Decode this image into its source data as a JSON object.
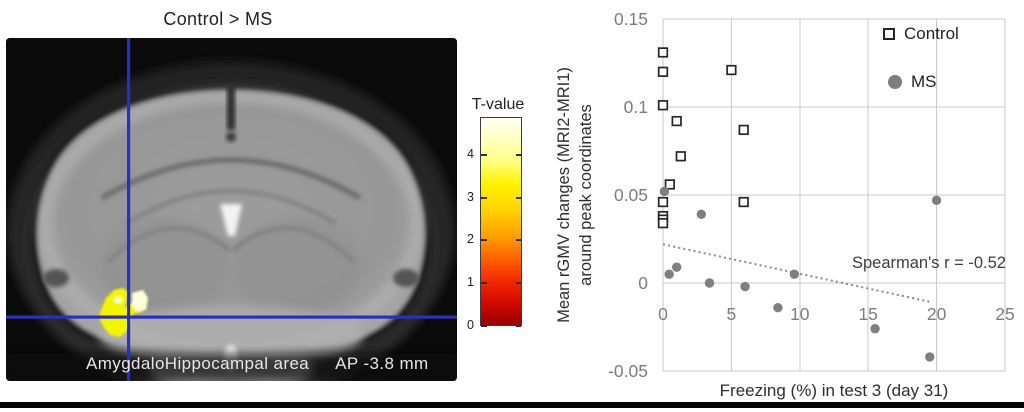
{
  "figure": {
    "left_panel": {
      "title": "Control > MS",
      "region_label": "AmygdaloHippocampal area",
      "coordinate_label": "AP -3.8 mm",
      "crosshair_color": "#2e2ebe",
      "activation_color": "#f4f400"
    },
    "colorbar": {
      "title": "T-value",
      "tick_values": [
        4,
        3,
        2,
        1,
        0
      ],
      "max_value": 4.88,
      "min_value": 0,
      "gradient_top_to_bottom": [
        "#fffff4",
        "#ffff8a",
        "#fff200",
        "#ffa000",
        "#f22800",
        "#980000"
      ]
    },
    "chart_data": {
      "type": "scatter",
      "xlabel": "Freezing (%) in test 3 (day 31)",
      "ylabel_line1": "Mean rGMV changes (MRI2-MRI1)",
      "ylabel_line2": "around peak coordinates",
      "xlim": [
        0,
        25
      ],
      "ylim": [
        -0.05,
        0.15
      ],
      "xticks": [
        0,
        5,
        10,
        15,
        20,
        25
      ],
      "xtick_labels": [
        "0",
        "5",
        "10",
        "15",
        "20",
        "25"
      ],
      "yticks": [
        0.15,
        0.1,
        0.05,
        0,
        -0.05
      ],
      "ytick_labels": [
        "0.15",
        "0.1",
        "0.05",
        "0",
        "-0.05"
      ],
      "grid": true,
      "legend_position": "top-right-inside",
      "annotation": "Spearman's r = -0.52",
      "spearman_r": -0.52,
      "grid_color": "#c9c9c9",
      "series": [
        {
          "name": "Control",
          "marker": "open-square",
          "stroke_color": "#262626",
          "fill_color": "#ffffff",
          "points": [
            [
              0,
              0.131
            ],
            [
              0,
              0.12
            ],
            [
              5,
              0.121
            ],
            [
              0,
              0.101
            ],
            [
              1,
              0.092
            ],
            [
              5.9,
              0.087
            ],
            [
              1.3,
              0.072
            ],
            [
              0.5,
              0.056
            ],
            [
              0,
              0.046
            ],
            [
              5.9,
              0.046
            ],
            [
              0,
              0.038
            ],
            [
              0,
              0.036
            ],
            [
              0,
              0.034
            ]
          ]
        },
        {
          "name": "MS",
          "marker": "filled-circle",
          "fill_color": "#7f7f7f",
          "points": [
            [
              0.1,
              0.052
            ],
            [
              2.8,
              0.039
            ],
            [
              20,
              0.047
            ],
            [
              0.45,
              0.005
            ],
            [
              1,
              0.009
            ],
            [
              3.4,
              0.0
            ],
            [
              6,
              -0.002
            ],
            [
              9.6,
              0.005
            ],
            [
              8.4,
              -0.014
            ],
            [
              15.5,
              -0.026
            ],
            [
              19.5,
              -0.042
            ]
          ]
        }
      ],
      "trendline": {
        "style": "dotted",
        "color": "#8a8a8a",
        "x1": 0,
        "y1": 0.022,
        "x2": 19.7,
        "y2": -0.011
      }
    }
  }
}
